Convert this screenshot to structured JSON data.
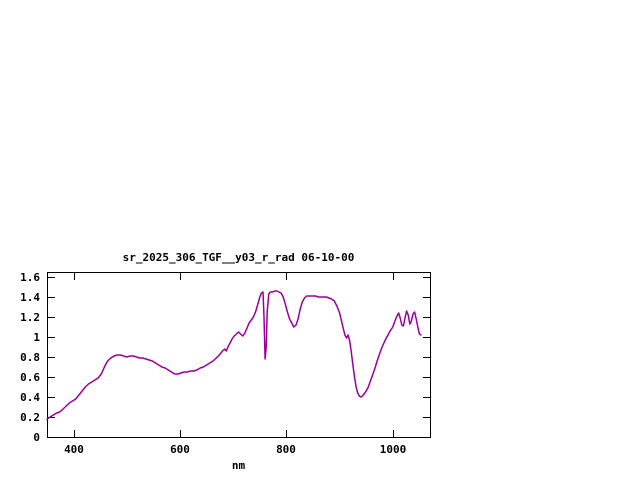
{
  "page": {
    "background": "#ffffff"
  },
  "chart_data": {
    "type": "line",
    "title": "sr_2025_306_TGF__y03_r_rad 06-10-00",
    "xlabel": "nm",
    "ylabel": "",
    "xlim": [
      350,
      1070
    ],
    "ylim": [
      0,
      1.65
    ],
    "xticks": [
      400,
      600,
      800,
      1000
    ],
    "xtick_labels": [
      "400",
      "600",
      "800",
      "1000"
    ],
    "yticks": [
      0,
      0.2,
      0.4,
      0.6,
      0.8,
      1,
      1.2,
      1.4,
      1.6
    ],
    "ytick_labels": [
      "0",
      "0.2",
      "0.4",
      "0.6",
      "0.8",
      "1",
      "1.2",
      "1.4",
      "1.6"
    ],
    "grid": false,
    "legend": "none",
    "line_color": "#990099",
    "axis_color": "#000000",
    "series": [
      {
        "name": "sr_2025_306_TGF__y03_r_rad",
        "x": [
          350,
          356,
          362,
          368,
          374,
          380,
          386,
          392,
          398,
          404,
          410,
          416,
          422,
          428,
          434,
          440,
          446,
          452,
          458,
          464,
          470,
          476,
          482,
          488,
          494,
          500,
          506,
          512,
          518,
          524,
          530,
          536,
          542,
          548,
          554,
          560,
          566,
          572,
          578,
          584,
          590,
          596,
          602,
          608,
          614,
          620,
          626,
          632,
          638,
          644,
          650,
          656,
          662,
          668,
          674,
          680,
          684,
          687,
          690,
          694,
          698,
          702,
          706,
          710,
          714,
          718,
          722,
          726,
          730,
          734,
          738,
          742,
          746,
          750,
          753,
          756,
          758,
          760,
          762,
          764,
          767,
          770,
          774,
          778,
          782,
          786,
          790,
          794,
          798,
          802,
          806,
          810,
          814,
          818,
          822,
          826,
          830,
          834,
          838,
          842,
          846,
          850,
          855,
          860,
          865,
          870,
          875,
          880,
          885,
          890,
          895,
          900,
          905,
          910,
          913,
          916,
          919,
          922,
          925,
          928,
          931,
          934,
          937,
          940,
          943,
          946,
          950,
          954,
          958,
          962,
          966,
          970,
          975,
          980,
          985,
          990,
          995,
          1000,
          1004,
          1008,
          1011,
          1014,
          1017,
          1020,
          1023,
          1026,
          1029,
          1032,
          1035,
          1038,
          1041,
          1044,
          1047,
          1050,
          1053
        ],
        "y": [
          0.18,
          0.2,
          0.22,
          0.24,
          0.25,
          0.28,
          0.31,
          0.34,
          0.36,
          0.38,
          0.42,
          0.46,
          0.5,
          0.53,
          0.55,
          0.57,
          0.59,
          0.63,
          0.7,
          0.76,
          0.79,
          0.81,
          0.82,
          0.82,
          0.81,
          0.8,
          0.81,
          0.81,
          0.8,
          0.79,
          0.79,
          0.78,
          0.77,
          0.76,
          0.74,
          0.72,
          0.7,
          0.69,
          0.67,
          0.65,
          0.63,
          0.63,
          0.64,
          0.65,
          0.65,
          0.66,
          0.66,
          0.67,
          0.69,
          0.7,
          0.72,
          0.74,
          0.76,
          0.79,
          0.82,
          0.86,
          0.88,
          0.86,
          0.9,
          0.94,
          0.98,
          1.01,
          1.03,
          1.05,
          1.03,
          1.01,
          1.04,
          1.09,
          1.14,
          1.17,
          1.2,
          1.25,
          1.32,
          1.4,
          1.44,
          1.45,
          1.2,
          0.78,
          0.9,
          1.25,
          1.43,
          1.45,
          1.45,
          1.46,
          1.46,
          1.45,
          1.44,
          1.4,
          1.33,
          1.25,
          1.18,
          1.14,
          1.1,
          1.12,
          1.18,
          1.28,
          1.35,
          1.39,
          1.41,
          1.41,
          1.41,
          1.41,
          1.41,
          1.4,
          1.4,
          1.4,
          1.4,
          1.39,
          1.38,
          1.36,
          1.31,
          1.24,
          1.13,
          1.02,
          0.99,
          1.02,
          0.96,
          0.85,
          0.72,
          0.6,
          0.5,
          0.44,
          0.41,
          0.4,
          0.41,
          0.43,
          0.46,
          0.5,
          0.56,
          0.62,
          0.68,
          0.75,
          0.83,
          0.9,
          0.96,
          1.01,
          1.06,
          1.1,
          1.16,
          1.21,
          1.24,
          1.19,
          1.12,
          1.11,
          1.19,
          1.26,
          1.22,
          1.13,
          1.16,
          1.23,
          1.25,
          1.18,
          1.1,
          1.03,
          1.02
        ]
      }
    ]
  }
}
